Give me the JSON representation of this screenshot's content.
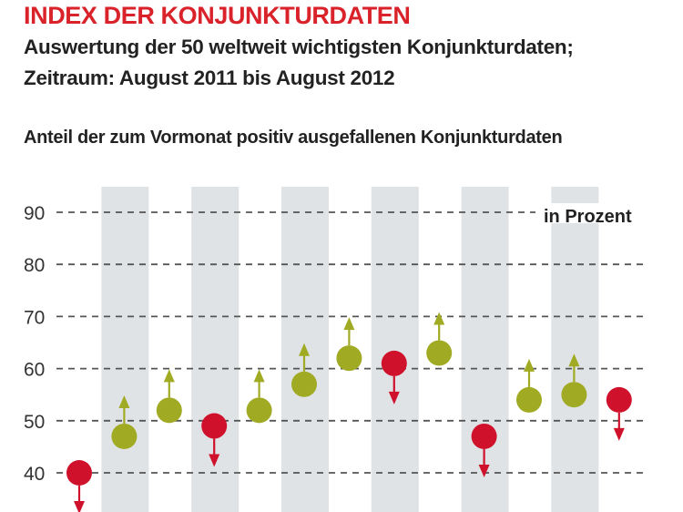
{
  "header": {
    "title": "INDEX DER KONJUNKTURDATEN",
    "subtitle_line1": "Auswertung der 50 weltweit wichtigsten Konjunkturdaten;",
    "subtitle_line2": "Zeitraum: August 2011 bis August 2012"
  },
  "colors": {
    "title": "#d9222a",
    "positive": "#a0aa22",
    "negative": "#d0112b",
    "band": "#dfe3e6",
    "grid": "#555555"
  },
  "chart_data": {
    "type": "scatter",
    "title": "Anteil der zum Vormonat positiv ausgefallenen Konjunkturdaten",
    "unit_label": "in Prozent",
    "ylim": [
      35,
      90
    ],
    "yticks": [
      40,
      50,
      60,
      70,
      80,
      90
    ],
    "grid": "dashed horizontal",
    "alternating_bands": true,
    "series": [
      {
        "values": [
          40,
          47,
          52,
          49,
          52,
          57,
          62,
          61,
          63,
          47,
          54,
          55,
          54
        ],
        "directions": [
          "down",
          "up",
          "up",
          "down",
          "up",
          "up",
          "up",
          "down",
          "up",
          "down",
          "up",
          "up",
          "down"
        ]
      }
    ]
  }
}
